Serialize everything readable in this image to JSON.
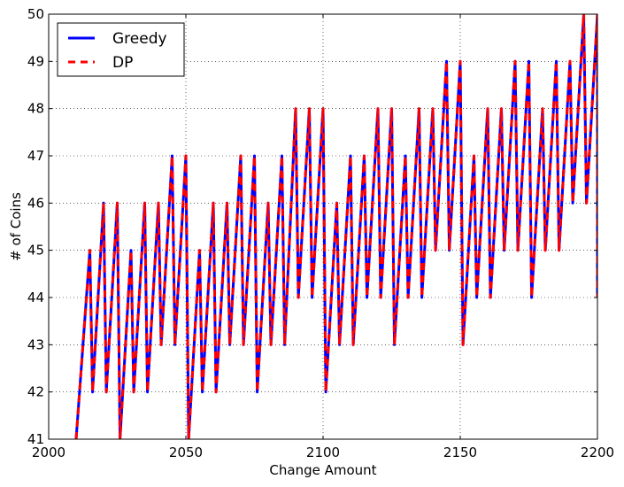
{
  "chart_data": {
    "type": "line",
    "title": "",
    "xlabel": "Change Amount",
    "ylabel": "# of Coins",
    "xlim": [
      2000,
      2200
    ],
    "ylim": [
      41,
      50
    ],
    "xticks": [
      "2000",
      "2050",
      "2100",
      "2150",
      "2200"
    ],
    "yticks": [
      "41",
      "42",
      "43",
      "44",
      "45",
      "46",
      "47",
      "48",
      "49",
      "50"
    ],
    "grid": true,
    "legend_position": "top-left",
    "x": [
      2010,
      2015,
      2016,
      2020,
      2021,
      2025,
      2026,
      2030,
      2031,
      2035,
      2036,
      2040,
      2041,
      2045,
      2046,
      2050,
      2051,
      2055,
      2056,
      2060,
      2061,
      2065,
      2066,
      2070,
      2071,
      2075,
      2076,
      2080,
      2081,
      2085,
      2086,
      2090,
      2091,
      2095,
      2096,
      2100,
      2101,
      2105,
      2106,
      2110,
      2111,
      2115,
      2116,
      2120,
      2121,
      2125,
      2126,
      2130,
      2131,
      2135,
      2136,
      2140,
      2141,
      2145,
      2146,
      2150,
      2151,
      2155,
      2156,
      2160,
      2161,
      2165,
      2166,
      2170,
      2171,
      2175,
      2176,
      2180,
      2181,
      2185,
      2186,
      2190,
      2191,
      2195,
      2196,
      2200,
      2200
    ],
    "series": [
      {
        "name": "Greedy",
        "color": "#0000ff",
        "style": "solid",
        "values": [
          41,
          45,
          42,
          46,
          42,
          46,
          41,
          45,
          42,
          46,
          42,
          46,
          43,
          47,
          43,
          47,
          41,
          45,
          42,
          46,
          42,
          46,
          43,
          47,
          43,
          47,
          42,
          46,
          43,
          47,
          43,
          48,
          44,
          48,
          44,
          48,
          42,
          46,
          43,
          47,
          43,
          47,
          44,
          48,
          44,
          48,
          43,
          47,
          44,
          48,
          44,
          48,
          45,
          49,
          45,
          49,
          43,
          47,
          44,
          48,
          44,
          48,
          45,
          49,
          45,
          49,
          44,
          48,
          45,
          49,
          45,
          49,
          46,
          50,
          46,
          50,
          44
        ]
      },
      {
        "name": "DP",
        "color": "#ff0000",
        "style": "dashed",
        "values": [
          41,
          45,
          42,
          46,
          42,
          46,
          41,
          45,
          42,
          46,
          42,
          46,
          43,
          47,
          43,
          47,
          41,
          45,
          42,
          46,
          42,
          46,
          43,
          47,
          43,
          47,
          42,
          46,
          43,
          47,
          43,
          48,
          44,
          48,
          44,
          48,
          42,
          46,
          43,
          47,
          43,
          47,
          44,
          48,
          44,
          48,
          43,
          47,
          44,
          48,
          44,
          48,
          45,
          49,
          45,
          49,
          43,
          47,
          44,
          48,
          44,
          48,
          45,
          49,
          45,
          49,
          44,
          48,
          45,
          49,
          45,
          49,
          46,
          50,
          46,
          50,
          44
        ]
      }
    ]
  }
}
